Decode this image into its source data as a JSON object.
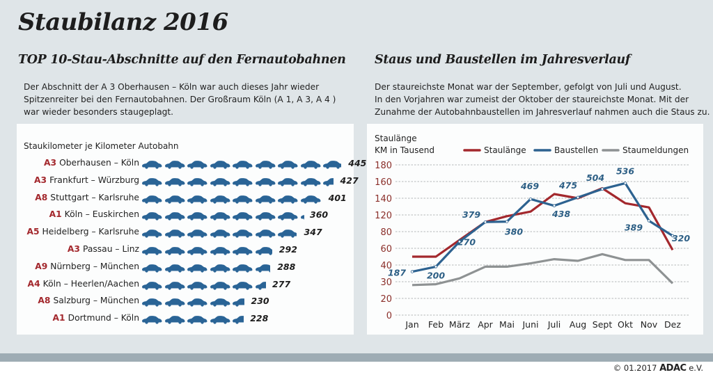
{
  "title": "Staubilanz 2016",
  "left": {
    "heading": "TOP 10-Stau-Abschnitte auf den Fernautobahnen",
    "description": [
      "Der Abschnitt der A 3 Oberhausen – Köln war auch dieses Jahr wieder",
      "Spitzenreiter bei den Fernautobahnen. Der Großraum Köln (A 1, A 3, A 4 )",
      "war wieder besonders staugeplagt."
    ],
    "caption": "Staukilometer je Kilometer Autobahn"
  },
  "right": {
    "heading": "Staus und Baustellen im Jahresverlauf",
    "description": [
      "Der staureichste Monat war der September, gefolgt von Juli und August.",
      "In den Vorjahren war zumeist der Oktober der staureichste Monat. Mit der",
      "Zunahme der Autobahnbaustellen im Jahresverlauf nahmen auch die Staus zu."
    ]
  },
  "footer": {
    "copyright": "© 01.2017",
    "brand": "ADAC",
    "suffix": "e.V."
  },
  "colors": {
    "road": "#a3282d",
    "car": "#2a6496",
    "staulaenge": "#a3282d",
    "baustellen": "#2d6290",
    "staumeldungen": "#8e9293",
    "axis_label": "#8b2f2a"
  },
  "chart_data": [
    {
      "type": "bar",
      "title": "TOP 10-Stau-Abschnitte auf den Fernautobahnen",
      "ylabel": "Staukilometer je Kilometer Autobahn",
      "unit_per_icon": 50,
      "categories": [
        {
          "road": "A3",
          "section": "Oberhausen – Köln"
        },
        {
          "road": "A3",
          "section": "Frankfurt – Würzburg"
        },
        {
          "road": "A8",
          "section": "Stuttgart – Karlsruhe"
        },
        {
          "road": "A1",
          "section": "Köln – Euskirchen"
        },
        {
          "road": "A5",
          "section": "Heidelberg – Karlsruhe"
        },
        {
          "road": "A3",
          "section": "Passau – Linz"
        },
        {
          "road": "A9",
          "section": "Nürnberg – München"
        },
        {
          "road": "A4",
          "section": "Köln – Heerlen/Aachen"
        },
        {
          "road": "A8",
          "section": "Salzburg – München"
        },
        {
          "road": "A1",
          "section": "Dortmund – Köln"
        }
      ],
      "values": [
        445,
        427,
        401,
        360,
        347,
        292,
        288,
        277,
        230,
        228
      ]
    },
    {
      "type": "line",
      "title": "Staus und Baustellen im Jahresverlauf",
      "ylabel": [
        "Staulänge",
        "KM in Tausend"
      ],
      "yticks": [
        180,
        160,
        140,
        120,
        80,
        60,
        40,
        30,
        20,
        0
      ],
      "ylim": [
        0,
        180
      ],
      "grid": true,
      "legend": "top",
      "x": [
        "Jan",
        "Feb",
        "März",
        "Apr",
        "Mai",
        "Juni",
        "Juli",
        "Aug",
        "Sept",
        "Okt",
        "Nov",
        "Dez"
      ],
      "series": [
        {
          "name": "Staulänge",
          "key": "staulaenge",
          "values": [
            50,
            50,
            70,
            103,
            117,
            124,
            145,
            140,
            152,
            134,
            129,
            58
          ]
        },
        {
          "name": "Baustellen",
          "key": "baustellen",
          "values": [
            36,
            39,
            68,
            103,
            104,
            139,
            131,
            141,
            151,
            158,
            106,
            75
          ],
          "labels": [
            187,
            200,
            270,
            379,
            380,
            469,
            438,
            475,
            504,
            536,
            389,
            320
          ]
        },
        {
          "name": "Staumeldungen",
          "key": "staumeldungen",
          "values": [
            28,
            28.5,
            32,
            39,
            39,
            42,
            47,
            45,
            53,
            46,
            46,
            29
          ]
        }
      ]
    }
  ]
}
